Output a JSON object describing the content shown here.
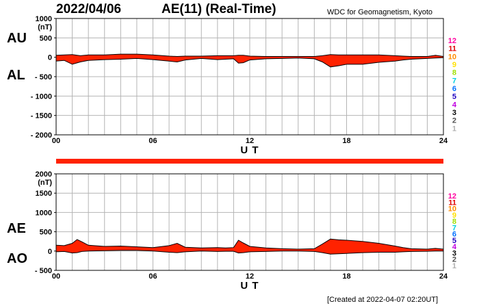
{
  "header": {
    "date": "2022/04/06",
    "title": "AE(11) (Real-Time)",
    "source": "WDC for Geomagnetism, Kyoto"
  },
  "footer": {
    "created": "[Created at 2022-04-07 02:20UT]"
  },
  "station_legend": {
    "items": [
      "12",
      "11",
      "10",
      "9",
      "8",
      "7",
      "6",
      "5",
      "4",
      "3",
      "2",
      "1"
    ],
    "colors": [
      "#ff00a0",
      "#e00000",
      "#ff8c00",
      "#ffe000",
      "#a0e000",
      "#00d0e0",
      "#0070ff",
      "#2000c0",
      "#c000e0",
      "#000000",
      "#505050",
      "#b0b0b0"
    ]
  },
  "colors": {
    "fill": "#ff2200",
    "outline": "#000000",
    "grid": "#b4b4b4",
    "frame": "#000000"
  },
  "chart_data": [
    {
      "type": "area",
      "panel": "top",
      "unit_label": "(nT)",
      "series_labels": [
        "AU",
        "AL"
      ],
      "xlabel": "U T",
      "x_ticks": [
        0,
        6,
        12,
        18,
        24
      ],
      "x_tick_labels": [
        "00",
        "06",
        "12",
        "18",
        "24"
      ],
      "y_ticks": [
        1000,
        500,
        0,
        -500,
        -1000,
        -1500,
        -2000
      ],
      "y_tick_labels": [
        "1000",
        "500",
        "0",
        "- 500",
        "- 1000",
        "- 1500",
        "- 2000"
      ],
      "ylim": [
        -2000,
        1000
      ],
      "xlim": [
        0,
        24
      ],
      "grid": true,
      "x": [
        0,
        0.5,
        1,
        1.5,
        2,
        3,
        4,
        5,
        6,
        7,
        7.5,
        8,
        9,
        10,
        10.5,
        11,
        11.3,
        11.6,
        12,
        13,
        14,
        15,
        16,
        16.5,
        17,
        17.5,
        18,
        19,
        20,
        21,
        21.5,
        22,
        23,
        23.5,
        24
      ],
      "series": [
        {
          "name": "AU",
          "values": [
            50,
            60,
            70,
            40,
            60,
            60,
            80,
            80,
            60,
            30,
            20,
            30,
            30,
            40,
            40,
            40,
            50,
            50,
            30,
            20,
            20,
            20,
            20,
            40,
            70,
            60,
            60,
            60,
            60,
            40,
            30,
            20,
            20,
            50,
            20
          ]
        },
        {
          "name": "AL",
          "values": [
            -100,
            -80,
            -180,
            -120,
            -80,
            -60,
            -50,
            -30,
            -60,
            -100,
            -120,
            -70,
            -30,
            -60,
            -50,
            -40,
            -150,
            -140,
            -70,
            -40,
            -30,
            -20,
            -40,
            -120,
            -250,
            -220,
            -180,
            -180,
            -130,
            -100,
            -70,
            -50,
            -30,
            -20,
            -10
          ]
        }
      ]
    },
    {
      "type": "area",
      "panel": "bottom",
      "unit_label": "(nT)",
      "series_labels": [
        "AE",
        "AO"
      ],
      "xlabel": "U T",
      "x_ticks": [
        0,
        6,
        12,
        18,
        24
      ],
      "x_tick_labels": [
        "00",
        "06",
        "12",
        "18",
        "24"
      ],
      "y_ticks": [
        2000,
        1500,
        1000,
        500,
        0,
        -500
      ],
      "y_tick_labels": [
        "2000",
        "1500",
        "1000",
        "500",
        "0",
        "- 500"
      ],
      "ylim": [
        -500,
        2000
      ],
      "xlim": [
        0,
        24
      ],
      "grid": true,
      "x": [
        0,
        0.5,
        1,
        1.3,
        1.6,
        2,
        3,
        4,
        5,
        6,
        7,
        7.5,
        8,
        9,
        10,
        10.5,
        11,
        11.3,
        11.6,
        12,
        13,
        14,
        15,
        16,
        16.5,
        17,
        17.5,
        18,
        19,
        20,
        21,
        21.5,
        22,
        23,
        23.5,
        24
      ],
      "series": [
        {
          "name": "AE",
          "values": [
            150,
            140,
            200,
            300,
            240,
            150,
            120,
            130,
            110,
            90,
            140,
            200,
            100,
            80,
            90,
            80,
            90,
            280,
            210,
            120,
            80,
            60,
            50,
            60,
            180,
            310,
            290,
            280,
            250,
            200,
            130,
            90,
            60,
            50,
            70,
            50
          ]
        },
        {
          "name": "AO",
          "values": [
            -20,
            -10,
            -50,
            -40,
            -10,
            0,
            10,
            20,
            20,
            0,
            -30,
            -40,
            -20,
            0,
            -10,
            -5,
            -5,
            -50,
            -40,
            -20,
            -10,
            0,
            0,
            -10,
            -40,
            -80,
            -70,
            -60,
            -40,
            -30,
            -30,
            -20,
            -10,
            -5,
            0,
            0
          ]
        }
      ]
    }
  ]
}
